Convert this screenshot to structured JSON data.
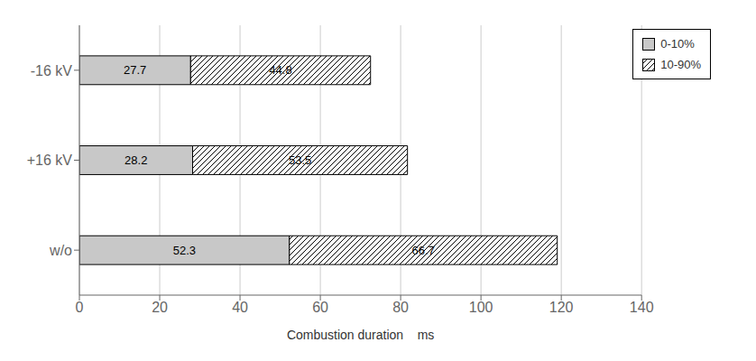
{
  "chart_data": {
    "type": "bar",
    "orientation": "horizontal",
    "stacked": true,
    "categories": [
      "-16 kV",
      "+16 kV",
      "w/o"
    ],
    "series": [
      {
        "name": "0-10%",
        "color": "#c8c8c8",
        "values": [
          27.7,
          28.2,
          52.3
        ]
      },
      {
        "name": "10-90%",
        "color": "#ffffff",
        "values": [
          44.8,
          53.5,
          66.7
        ]
      }
    ],
    "xlabel": "Combustion duration    ms",
    "xlim": [
      0,
      140
    ],
    "xticks": [
      0,
      20,
      40,
      60,
      80,
      100,
      120,
      140
    ],
    "grid": true,
    "legend": "upper right",
    "data_labels": true
  }
}
